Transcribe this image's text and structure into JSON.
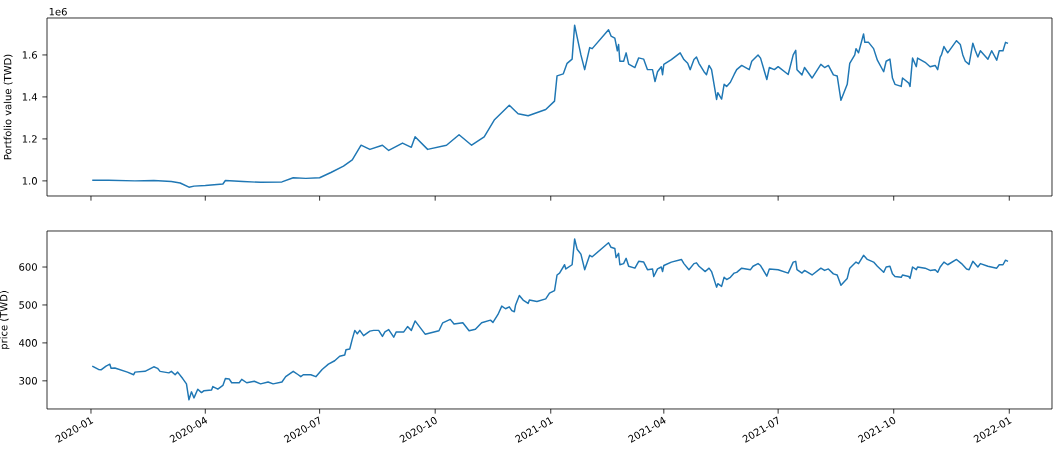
{
  "chart_data": [
    {
      "type": "line",
      "ylabel": "Portfolio value (TWD)",
      "annotations": [
        "1e6"
      ],
      "tick_labels": "y",
      "xlim": [
        "2019-11-27",
        "2022-02-04"
      ],
      "ylim": [
        0.928,
        1.776
      ],
      "xticks": [
        "2020-01",
        "2020-04",
        "2020-07",
        "2020-10",
        "2021-01",
        "2021-04",
        "2021-07",
        "2021-10",
        "2022-01"
      ],
      "yticks": [
        {
          "value": 1.0,
          "label": "1.0"
        },
        {
          "value": 1.2,
          "label": "1.2"
        },
        {
          "value": 1.4,
          "label": "1.4"
        },
        {
          "value": 1.6,
          "label": "1.6"
        }
      ],
      "x": [
        "2020-01-02",
        "2020-01-15",
        "2020-02-05",
        "2020-02-20",
        "2020-03-05",
        "2020-03-12",
        "2020-03-19",
        "2020-03-23",
        "2020-04-01",
        "2020-04-15",
        "2020-04-17",
        "2020-05-01",
        "2020-05-15",
        "2020-06-01",
        "2020-06-10",
        "2020-06-20",
        "2020-07-01",
        "2020-07-10",
        "2020-07-20",
        "2020-07-27",
        "2020-08-03",
        "2020-08-10",
        "2020-08-20",
        "2020-08-25",
        "2020-09-05",
        "2020-09-12",
        "2020-09-15",
        "2020-09-25",
        "2020-10-10",
        "2020-10-20",
        "2020-10-30",
        "2020-11-09",
        "2020-11-17",
        "2020-11-29",
        "2020-12-06",
        "2020-12-14",
        "2020-12-28",
        "2021-01-04",
        "2021-01-06",
        "2021-01-11",
        "2021-01-14",
        "2021-01-18",
        "2021-01-20",
        "2021-01-22",
        "2021-01-25",
        "2021-01-28",
        "2021-02-01",
        "2021-02-03",
        "2021-02-16",
        "2021-02-18",
        "2021-02-21",
        "2021-02-23",
        "2021-02-24",
        "2021-02-25",
        "2021-02-28",
        "2021-03-02",
        "2021-03-04",
        "2021-03-09",
        "2021-03-12",
        "2021-03-16",
        "2021-03-19",
        "2021-03-23",
        "2021-03-25",
        "2021-03-27",
        "2021-03-30",
        "2021-03-31",
        "2021-04-01",
        "2021-04-07",
        "2021-04-14",
        "2021-04-17",
        "2021-04-20",
        "2021-04-22",
        "2021-04-25",
        "2021-04-27",
        "2021-04-29",
        "2021-05-03",
        "2021-05-05",
        "2021-05-07",
        "2021-05-09",
        "2021-05-13",
        "2021-05-14",
        "2021-05-17",
        "2021-05-19",
        "2021-05-21",
        "2021-05-24",
        "2021-05-27",
        "2021-05-29",
        "2021-06-02",
        "2021-06-08",
        "2021-06-10",
        "2021-06-15",
        "2021-06-17",
        "2021-06-22",
        "2021-06-24",
        "2021-06-28",
        "2021-07-01",
        "2021-07-09",
        "2021-07-13",
        "2021-07-15",
        "2021-07-16",
        "2021-07-20",
        "2021-07-22",
        "2021-07-28",
        "2021-08-04",
        "2021-08-07",
        "2021-08-10",
        "2021-08-14",
        "2021-08-17",
        "2021-08-20",
        "2021-08-25",
        "2021-08-27",
        "2021-08-31",
        "2021-09-01",
        "2021-09-03",
        "2021-09-07",
        "2021-09-08",
        "2021-09-11",
        "2021-09-15",
        "2021-09-18",
        "2021-09-23",
        "2021-09-25",
        "2021-09-28",
        "2021-09-30",
        "2021-10-02",
        "2021-10-07",
        "2021-10-08",
        "2021-10-13",
        "2021-10-14",
        "2021-10-16",
        "2021-10-19",
        "2021-10-20",
        "2021-10-26",
        "2021-10-30",
        "2021-11-03",
        "2021-11-05",
        "2021-11-07",
        "2021-11-08",
        "2021-11-10",
        "2021-11-13",
        "2021-11-20",
        "2021-11-23",
        "2021-11-25",
        "2021-11-27",
        "2021-11-30",
        "2021-12-03",
        "2021-12-05",
        "2021-12-07",
        "2021-12-09",
        "2021-12-15",
        "2021-12-18",
        "2021-12-22",
        "2021-12-24",
        "2021-12-27",
        "2021-12-29",
        "2021-12-31"
      ],
      "series": [
        {
          "color": "#1f77b4",
          "values": [
            1.003,
            1.003,
            1.0,
            1.002,
            0.997,
            0.99,
            0.97,
            0.975,
            0.978,
            0.985,
            1.002,
            0.997,
            0.993,
            0.995,
            1.015,
            1.012,
            1.015,
            1.04,
            1.07,
            1.1,
            1.17,
            1.15,
            1.17,
            1.145,
            1.18,
            1.16,
            1.21,
            1.15,
            1.17,
            1.22,
            1.17,
            1.21,
            1.29,
            1.36,
            1.32,
            1.31,
            1.34,
            1.38,
            1.5,
            1.51,
            1.56,
            1.58,
            1.742,
            1.685,
            1.6,
            1.53,
            1.635,
            1.63,
            1.72,
            1.69,
            1.68,
            1.62,
            1.65,
            1.57,
            1.57,
            1.61,
            1.556,
            1.54,
            1.586,
            1.58,
            1.53,
            1.53,
            1.473,
            1.52,
            1.544,
            1.506,
            1.555,
            1.578,
            1.61,
            1.578,
            1.56,
            1.53,
            1.578,
            1.59,
            1.56,
            1.52,
            1.506,
            1.55,
            1.53,
            1.388,
            1.42,
            1.39,
            1.46,
            1.45,
            1.47,
            1.507,
            1.53,
            1.55,
            1.53,
            1.57,
            1.6,
            1.585,
            1.483,
            1.54,
            1.53,
            1.544,
            1.507,
            1.6,
            1.622,
            1.53,
            1.505,
            1.54,
            1.49,
            1.555,
            1.54,
            1.55,
            1.505,
            1.5,
            1.384,
            1.46,
            1.56,
            1.6,
            1.63,
            1.61,
            1.7,
            1.66,
            1.66,
            1.63,
            1.575,
            1.52,
            1.57,
            1.58,
            1.49,
            1.46,
            1.45,
            1.49,
            1.466,
            1.45,
            1.585,
            1.544,
            1.585,
            1.565,
            1.544,
            1.55,
            1.53,
            1.59,
            1.6,
            1.64,
            1.61,
            1.668,
            1.65,
            1.6,
            1.57,
            1.555,
            1.656,
            1.62,
            1.59,
            1.62,
            1.58,
            1.62,
            1.575,
            1.62,
            1.62,
            1.66,
            1.655
          ]
        }
      ]
    },
    {
      "type": "line",
      "ylabel": "price (TWD)",
      "xlim": [
        "2019-11-27",
        "2022-02-04"
      ],
      "ylim": [
        225.8,
        695
      ],
      "xticks": [
        "2020-01",
        "2020-04",
        "2020-07",
        "2020-10",
        "2021-01",
        "2021-04",
        "2021-07",
        "2021-10",
        "2022-01"
      ],
      "yticks": [
        300,
        400,
        500,
        600
      ],
      "x": [
        "2020-01-02",
        "2020-01-07",
        "2020-01-09",
        "2020-01-13",
        "2020-01-16",
        "2020-01-17",
        "2020-01-20",
        "2020-01-30",
        "2020-02-04",
        "2020-02-05",
        "2020-02-13",
        "2020-02-20",
        "2020-02-23",
        "2020-02-25",
        "2020-03-03",
        "2020-03-05",
        "2020-03-08",
        "2020-03-10",
        "2020-03-14",
        "2020-03-17",
        "2020-03-19",
        "2020-03-21",
        "2020-03-23",
        "2020-03-26",
        "2020-03-29",
        "2020-03-31",
        "2020-04-06",
        "2020-04-07",
        "2020-04-11",
        "2020-04-15",
        "2020-04-17",
        "2020-04-20",
        "2020-04-22",
        "2020-04-28",
        "2020-04-30",
        "2020-05-04",
        "2020-05-10",
        "2020-05-15",
        "2020-05-21",
        "2020-05-25",
        "2020-06-01",
        "2020-06-04",
        "2020-06-10",
        "2020-06-14",
        "2020-06-16",
        "2020-06-18",
        "2020-06-24",
        "2020-06-28",
        "2020-07-03",
        "2020-07-08",
        "2020-07-13",
        "2020-07-17",
        "2020-07-21",
        "2020-07-22",
        "2020-07-25",
        "2020-07-27",
        "2020-07-29",
        "2020-07-31",
        "2020-08-02",
        "2020-08-05",
        "2020-08-10",
        "2020-08-13",
        "2020-08-17",
        "2020-08-20",
        "2020-08-22",
        "2020-08-25",
        "2020-08-29",
        "2020-08-31",
        "2020-09-06",
        "2020-09-09",
        "2020-09-12",
        "2020-09-15",
        "2020-09-23",
        "2020-10-04",
        "2020-10-07",
        "2020-10-13",
        "2020-10-16",
        "2020-10-23",
        "2020-10-28",
        "2020-11-02",
        "2020-11-07",
        "2020-11-14",
        "2020-11-16",
        "2020-11-20",
        "2020-11-23",
        "2020-11-26",
        "2020-11-29",
        "2020-12-01",
        "2020-12-03",
        "2020-12-04",
        "2020-12-07",
        "2020-12-10",
        "2020-12-14",
        "2020-12-15",
        "2020-12-21",
        "2020-12-28",
        "2020-12-31",
        "2021-01-04",
        "2021-01-06",
        "2021-01-08",
        "2021-01-12",
        "2021-01-13",
        "2021-01-18",
        "2021-01-20",
        "2021-01-22",
        "2021-01-25",
        "2021-01-28",
        "2021-02-01",
        "2021-02-03",
        "2021-02-16",
        "2021-02-18",
        "2021-02-21",
        "2021-02-22",
        "2021-02-24",
        "2021-02-25",
        "2021-02-28",
        "2021-03-02",
        "2021-03-04",
        "2021-03-09",
        "2021-03-12",
        "2021-03-16",
        "2021-03-19",
        "2021-03-23",
        "2021-03-24",
        "2021-03-27",
        "2021-03-30",
        "2021-03-31",
        "2021-04-01",
        "2021-04-07",
        "2021-04-15",
        "2021-04-17",
        "2021-04-21",
        "2021-04-25",
        "2021-04-27",
        "2021-04-29",
        "2021-05-04",
        "2021-05-07",
        "2021-05-09",
        "2021-05-13",
        "2021-05-14",
        "2021-05-17",
        "2021-05-19",
        "2021-05-21",
        "2021-05-24",
        "2021-05-27",
        "2021-05-29",
        "2021-06-02",
        "2021-06-09",
        "2021-06-11",
        "2021-06-15",
        "2021-06-17",
        "2021-06-22",
        "2021-06-24",
        "2021-07-01",
        "2021-07-09",
        "2021-07-13",
        "2021-07-15",
        "2021-07-16",
        "2021-07-20",
        "2021-07-22",
        "2021-07-28",
        "2021-08-04",
        "2021-08-07",
        "2021-08-10",
        "2021-08-14",
        "2021-08-17",
        "2021-08-20",
        "2021-08-25",
        "2021-08-27",
        "2021-09-01",
        "2021-09-03",
        "2021-09-07",
        "2021-09-10",
        "2021-09-15",
        "2021-09-18",
        "2021-09-23",
        "2021-09-25",
        "2021-09-28",
        "2021-09-30",
        "2021-10-02",
        "2021-10-07",
        "2021-10-08",
        "2021-10-13",
        "2021-10-14",
        "2021-10-16",
        "2021-10-19",
        "2021-10-20",
        "2021-10-26",
        "2021-10-30",
        "2021-11-03",
        "2021-11-05",
        "2021-11-07",
        "2021-11-10",
        "2021-11-13",
        "2021-11-20",
        "2021-11-24",
        "2021-11-28",
        "2021-11-30",
        "2021-12-03",
        "2021-12-07",
        "2021-12-09",
        "2021-12-15",
        "2021-12-22",
        "2021-12-24",
        "2021-12-27",
        "2021-12-29",
        "2021-12-31"
      ],
      "series": [
        {
          "color": "#1f77b4",
          "values": [
            339,
            330,
            329,
            339,
            344,
            333,
            334,
            323,
            316,
            323,
            325,
            337,
            333,
            325,
            321,
            325,
            316,
            323,
            306,
            292,
            250,
            271,
            255,
            278,
            269,
            274,
            276,
            285,
            278,
            288,
            306,
            305,
            295,
            295,
            304,
            295,
            299,
            292,
            297,
            292,
            297,
            311,
            325,
            316,
            311,
            316,
            316,
            311,
            330,
            344,
            353,
            365,
            368,
            382,
            384,
            410,
            433,
            424,
            433,
            419,
            431,
            433,
            433,
            417,
            429,
            435,
            415,
            429,
            429,
            443,
            433,
            458,
            423,
            432,
            453,
            462,
            450,
            453,
            432,
            436,
            453,
            460,
            454,
            475,
            497,
            490,
            495,
            485,
            482,
            500,
            525,
            513,
            504,
            513,
            509,
            516,
            531,
            538,
            579,
            584,
            606,
            595,
            606,
            674,
            647,
            634,
            593,
            631,
            627,
            664,
            652,
            649,
            625,
            636,
            606,
            609,
            623,
            602,
            597,
            615,
            613,
            593,
            595,
            575,
            595,
            600,
            588,
            604,
            613,
            620,
            609,
            593,
            609,
            611,
            602,
            588,
            597,
            588,
            547,
            556,
            549,
            573,
            567,
            573,
            584,
            586,
            597,
            593,
            602,
            609,
            604,
            576,
            595,
            593,
            584,
            613,
            615,
            593,
            584,
            591,
            579,
            597,
            591,
            595,
            582,
            579,
            552,
            570,
            597,
            613,
            609,
            631,
            620,
            613,
            602,
            586,
            600,
            602,
            582,
            575,
            573,
            579,
            575,
            570,
            600,
            593,
            600,
            597,
            591,
            593,
            586,
            600,
            613,
            606,
            620,
            609,
            595,
            593,
            615,
            600,
            609,
            602,
            597,
            606,
            606,
            618,
            615
          ]
        }
      ]
    }
  ]
}
